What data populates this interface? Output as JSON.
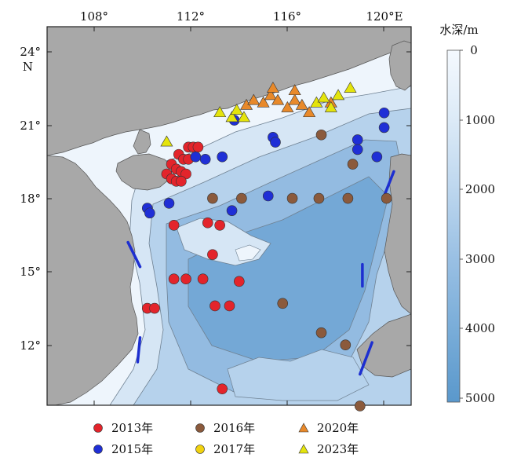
{
  "map": {
    "lon_labels": [
      "108°",
      "112°",
      "116°",
      "120°E"
    ],
    "lat_labels": [
      "24°",
      "N",
      "21°",
      "18°",
      "15°",
      "12°"
    ],
    "colorbar": {
      "title": "水深/m",
      "ticks": [
        "0",
        "1000",
        "2000",
        "3000",
        "4000",
        "5000"
      ]
    }
  },
  "colors": {
    "land": "#a8a8a8",
    "depth_shallow": "#eef5fc",
    "depth_deep": "#5a98cc",
    "y2013": "#e3242b",
    "y2015": "#1f2fd6",
    "y2016": "#8b5a3c",
    "y2017": "#f1d20f",
    "y2020": "#e8892a",
    "y2023": "#e4e40c"
  },
  "legend": [
    {
      "key": "y2013",
      "label": "2013年",
      "shape": "circle"
    },
    {
      "key": "y2016",
      "label": "2016年",
      "shape": "circle"
    },
    {
      "key": "y2020",
      "label": "2020年",
      "shape": "triangle"
    },
    {
      "key": "y2015",
      "label": "2015年",
      "shape": "circle"
    },
    {
      "key": "y2017",
      "label": "2017年",
      "shape": "circle"
    },
    {
      "key": "y2023",
      "label": "2023年",
      "shape": "triangle"
    }
  ],
  "stations": {
    "y2013": [
      [
        111.9,
        20.1
      ],
      [
        112.1,
        20.1
      ],
      [
        112.3,
        20.1
      ],
      [
        111.5,
        19.8
      ],
      [
        111.7,
        19.6
      ],
      [
        111.9,
        19.6
      ],
      [
        111.2,
        19.4
      ],
      [
        111.4,
        19.2
      ],
      [
        111.6,
        19.1
      ],
      [
        111.8,
        19.0
      ],
      [
        111.0,
        19.0
      ],
      [
        111.2,
        18.8
      ],
      [
        111.4,
        18.7
      ],
      [
        111.6,
        18.7
      ],
      [
        111.3,
        16.9
      ],
      [
        112.7,
        17.0
      ],
      [
        113.2,
        16.9
      ],
      [
        112.9,
        15.7
      ],
      [
        111.3,
        14.7
      ],
      [
        111.8,
        14.7
      ],
      [
        112.5,
        14.7
      ],
      [
        114.0,
        14.6
      ],
      [
        110.2,
        13.5
      ],
      [
        110.5,
        13.5
      ],
      [
        113.0,
        13.6
      ],
      [
        113.6,
        13.6
      ],
      [
        113.3,
        10.2
      ]
    ],
    "y2015": [
      [
        112.2,
        19.7
      ],
      [
        112.6,
        19.6
      ],
      [
        113.3,
        19.7
      ],
      [
        113.8,
        21.2
      ],
      [
        115.4,
        20.5
      ],
      [
        115.5,
        20.3
      ],
      [
        118.9,
        20.4
      ],
      [
        118.9,
        20.0
      ],
      [
        119.7,
        19.7
      ],
      [
        120.0,
        21.5
      ],
      [
        120.0,
        20.9
      ],
      [
        115.2,
        18.1
      ],
      [
        110.2,
        17.6
      ],
      [
        110.3,
        17.4
      ],
      [
        111.1,
        17.8
      ],
      [
        113.7,
        17.5
      ]
    ],
    "y2016": [
      [
        117.4,
        20.6
      ],
      [
        118.7,
        19.4
      ],
      [
        112.9,
        18.0
      ],
      [
        114.1,
        18.0
      ],
      [
        116.2,
        18.0
      ],
      [
        117.3,
        18.0
      ],
      [
        118.5,
        18.0
      ],
      [
        120.1,
        18.0
      ],
      [
        115.8,
        13.7
      ],
      [
        117.4,
        12.5
      ],
      [
        118.4,
        12.0
      ],
      [
        119.0,
        9.5
      ]
    ],
    "y2017": [],
    "y2020": [
      [
        114.3,
        21.8
      ],
      [
        114.6,
        22.0
      ],
      [
        115.0,
        21.9
      ],
      [
        115.3,
        22.2
      ],
      [
        115.6,
        22.0
      ],
      [
        116.0,
        21.7
      ],
      [
        116.3,
        22.0
      ],
      [
        116.6,
        21.8
      ],
      [
        116.9,
        21.5
      ],
      [
        115.4,
        22.5
      ],
      [
        116.3,
        22.4
      ],
      [
        117.8,
        21.9
      ]
    ],
    "y2023": [
      [
        111.0,
        20.3
      ],
      [
        113.2,
        21.5
      ],
      [
        113.7,
        21.3
      ],
      [
        113.9,
        21.6
      ],
      [
        114.2,
        21.3
      ],
      [
        117.2,
        21.9
      ],
      [
        117.5,
        22.1
      ],
      [
        118.1,
        22.2
      ],
      [
        118.6,
        22.5
      ],
      [
        117.8,
        21.7
      ]
    ]
  },
  "boundary_dashes": [
    [
      [
        109.4,
        16.2
      ],
      [
        109.9,
        15.2
      ]
    ],
    [
      [
        109.9,
        12.3
      ],
      [
        109.8,
        11.3
      ]
    ],
    [
      [
        119.1,
        15.3
      ],
      [
        119.1,
        14.4
      ]
    ],
    [
      [
        119.5,
        12.1
      ],
      [
        119.0,
        10.8
      ]
    ],
    [
      [
        120.0,
        18.1
      ],
      [
        120.4,
        19.1
      ]
    ]
  ]
}
